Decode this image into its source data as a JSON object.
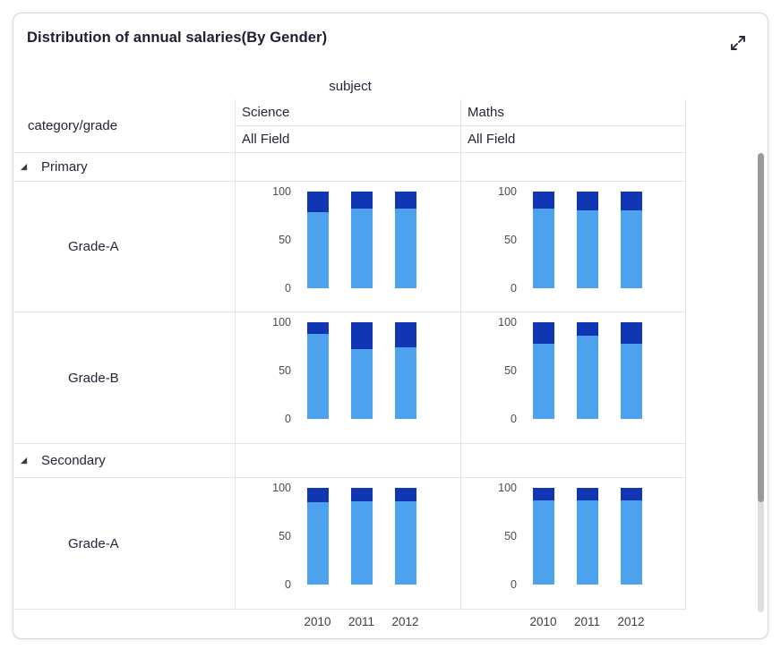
{
  "header": {
    "title": "Distribution of annual salaries(By Gender)"
  },
  "pivot": {
    "column_dimension_label": "subject",
    "corner_label": "category/grade",
    "columns": [
      {
        "subject": "Science",
        "field": "All Field"
      },
      {
        "subject": "Maths",
        "field": "All Field"
      }
    ],
    "row_groups": [
      {
        "label": "Primary",
        "children": [
          "Grade-A",
          "Grade-B"
        ]
      },
      {
        "label": "Secondary",
        "children": [
          "Grade-A"
        ]
      }
    ]
  },
  "chart_data": {
    "type": "bar",
    "stacked": true,
    "unit": "percent",
    "title": "Distribution of annual salaries(By Gender)",
    "x": [
      "2010",
      "2011",
      "2012"
    ],
    "y_ticks": [
      "100",
      "50",
      "0"
    ],
    "ylim": [
      0,
      100
    ],
    "colors": {
      "bottom_segment": "#4da2ee",
      "top_segment": "#1036b4"
    },
    "cells": [
      {
        "row_group": "Primary",
        "row": "Grade-A",
        "column": "Science",
        "field": "All Field",
        "series": [
          {
            "name": "bottom",
            "values": [
              79,
              82,
              82
            ]
          },
          {
            "name": "top",
            "values": [
              21,
              18,
              18
            ]
          }
        ]
      },
      {
        "row_group": "Primary",
        "row": "Grade-A",
        "column": "Maths",
        "field": "All Field",
        "series": [
          {
            "name": "bottom",
            "values": [
              82,
              81,
              81
            ]
          },
          {
            "name": "top",
            "values": [
              18,
              19,
              19
            ]
          }
        ]
      },
      {
        "row_group": "Primary",
        "row": "Grade-B",
        "column": "Science",
        "field": "All Field",
        "series": [
          {
            "name": "bottom",
            "values": [
              88,
              72,
              74
            ]
          },
          {
            "name": "top",
            "values": [
              12,
              28,
              26
            ]
          }
        ]
      },
      {
        "row_group": "Primary",
        "row": "Grade-B",
        "column": "Maths",
        "field": "All Field",
        "series": [
          {
            "name": "bottom",
            "values": [
              78,
              86,
              78
            ]
          },
          {
            "name": "top",
            "values": [
              22,
              14,
              22
            ]
          }
        ]
      },
      {
        "row_group": "Secondary",
        "row": "Grade-A",
        "column": "Science",
        "field": "All Field",
        "series": [
          {
            "name": "bottom",
            "values": [
              85,
              86,
              86
            ]
          },
          {
            "name": "top",
            "values": [
              15,
              14,
              14
            ]
          }
        ]
      },
      {
        "row_group": "Secondary",
        "row": "Grade-A",
        "column": "Maths",
        "field": "All Field",
        "series": [
          {
            "name": "bottom",
            "values": [
              87,
              87,
              87
            ]
          },
          {
            "name": "top",
            "values": [
              13,
              13,
              13
            ]
          }
        ]
      }
    ]
  }
}
